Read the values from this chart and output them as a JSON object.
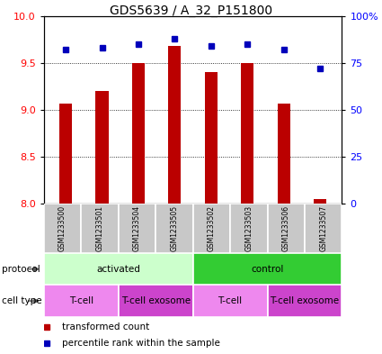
{
  "title": "GDS5639 / A_32_P151800",
  "samples": [
    "GSM1233500",
    "GSM1233501",
    "GSM1233504",
    "GSM1233505",
    "GSM1233502",
    "GSM1233503",
    "GSM1233506",
    "GSM1233507"
  ],
  "transformed_counts": [
    9.07,
    9.2,
    9.5,
    9.68,
    9.4,
    9.5,
    9.07,
    8.05
  ],
  "percentile_ranks": [
    82,
    83,
    85,
    88,
    84,
    85,
    82,
    72
  ],
  "ylim_left": [
    8,
    10
  ],
  "ylim_right": [
    0,
    100
  ],
  "yticks_left": [
    8,
    8.5,
    9,
    9.5,
    10
  ],
  "yticks_right": [
    0,
    25,
    50,
    75,
    100
  ],
  "bar_color": "#bb0000",
  "dot_color": "#0000bb",
  "protocol_labels": [
    {
      "text": "activated",
      "start": 0,
      "end": 4,
      "color": "#ccffcc"
    },
    {
      "text": "control",
      "start": 4,
      "end": 8,
      "color": "#33cc33"
    }
  ],
  "celltype_labels": [
    {
      "text": "T-cell",
      "start": 0,
      "end": 2,
      "color": "#ee88ee"
    },
    {
      "text": "T-cell exosome",
      "start": 2,
      "end": 4,
      "color": "#cc44cc"
    },
    {
      "text": "T-cell",
      "start": 4,
      "end": 6,
      "color": "#ee88ee"
    },
    {
      "text": "T-cell exosome",
      "start": 6,
      "end": 8,
      "color": "#cc44cc"
    }
  ],
  "legend_red": "transformed count",
  "legend_blue": "percentile rank within the sample",
  "bar_width": 0.35,
  "label_fontsize": 7.5,
  "tick_fontsize": 8,
  "title_fontsize": 10,
  "sample_fontsize": 5.5,
  "sample_bg": "#c8c8c8"
}
